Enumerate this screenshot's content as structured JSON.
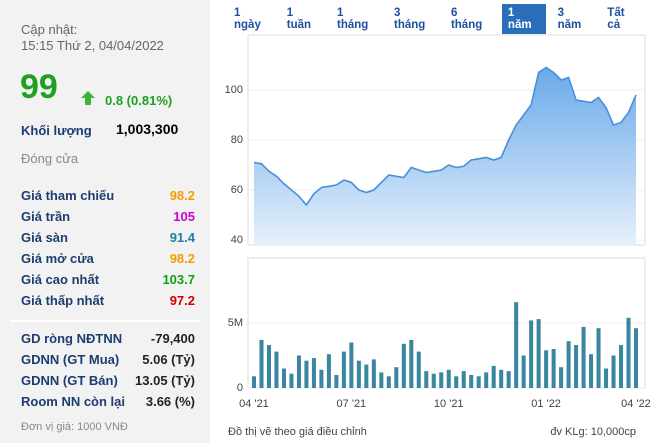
{
  "panel": {
    "updated_label": "Cập nhật:",
    "updated_time": "15:15 Thứ 2, 04/04/2022",
    "price": "99",
    "change": "0.8 (0.81%)",
    "volume_label": "Khối lượng",
    "volume": "1,003,300",
    "status": "Đóng cửa",
    "stats": [
      {
        "label": "Giá tham chiếu",
        "value": "98.2",
        "color": "#f0a000"
      },
      {
        "label": "Giá trần",
        "value": "105",
        "color": "#d000d0"
      },
      {
        "label": "Giá sàn",
        "value": "91.4",
        "color": "#1a7fa0"
      },
      {
        "label": "Giá mở cửa",
        "value": "98.2",
        "color": "#f0a000"
      },
      {
        "label": "Giá cao nhất",
        "value": "103.7",
        "color": "#10a010"
      },
      {
        "label": "Giá thấp nhất",
        "value": "97.2",
        "color": "#d00000"
      }
    ],
    "foreign": [
      {
        "label": "GD ròng NĐTNN",
        "value": "-79,400"
      },
      {
        "label": "GDNN (GT Mua)",
        "value": "5.06 (Tỷ)"
      },
      {
        "label": "GDNN (GT Bán)",
        "value": "13.05 (Tỷ)"
      },
      {
        "label": "Room NN còn lại",
        "value": "3.66 (%)"
      }
    ],
    "unit_note": "Đơn vị giá: 1000 VNĐ"
  },
  "tabs": [
    "1 ngày",
    "1 tuần",
    "1 tháng",
    "3 tháng",
    "6 tháng",
    "1 năm",
    "3 năm",
    "Tất cả"
  ],
  "footer": {
    "note": "Đồ thị vẽ theo giá điều chỉnh",
    "volume_unit": "đv KLg: 10,000cp"
  },
  "chart_data": [
    {
      "type": "area",
      "color": "#4a8fd8",
      "values": [
        71,
        70.5,
        67.5,
        65.5,
        62.5,
        60,
        57.5,
        54,
        58.5,
        61,
        61.5,
        62,
        64,
        63,
        60,
        59,
        60,
        63,
        66,
        65.5,
        65,
        69,
        68,
        67,
        67.5,
        68,
        70,
        69,
        69.5,
        72,
        72.5,
        73,
        72,
        73,
        80,
        86,
        90,
        94,
        107,
        109,
        107,
        104,
        105,
        96,
        95.5,
        95,
        97,
        93,
        86,
        87,
        91,
        98
      ],
      "ylim": [
        38,
        122
      ],
      "yticks": [
        40,
        60,
        80,
        100
      ],
      "grid": true
    },
    {
      "type": "bar",
      "color": "#3a86a0",
      "categories": [
        "04 '21",
        null,
        null,
        null,
        null,
        null,
        null,
        null,
        null,
        null,
        null,
        null,
        null,
        "07 '21",
        null,
        null,
        null,
        null,
        null,
        null,
        null,
        null,
        null,
        null,
        null,
        null,
        "10 '21",
        null,
        null,
        null,
        null,
        null,
        null,
        null,
        null,
        null,
        null,
        null,
        null,
        "01 '22",
        null,
        null,
        null,
        null,
        null,
        null,
        null,
        null,
        null,
        null,
        null,
        "04 '22"
      ],
      "values": [
        900000,
        3700000,
        3300000,
        2800000,
        1500000,
        1100000,
        2500000,
        2100000,
        2300000,
        1400000,
        2600000,
        1000000,
        2800000,
        3500000,
        2100000,
        1800000,
        2200000,
        1200000,
        900000,
        1600000,
        3400000,
        3700000,
        2800000,
        1300000,
        1100000,
        1200000,
        1400000,
        900000,
        1300000,
        1000000,
        900000,
        1200000,
        1700000,
        1400000,
        1300000,
        6600000,
        2500000,
        5200000,
        5300000,
        2900000,
        3000000,
        1600000,
        3600000,
        3300000,
        4700000,
        2600000,
        4600000,
        1500000,
        2500000,
        3300000,
        5400000,
        4600000
      ],
      "ylim": [
        0,
        10000000
      ],
      "yticks": [
        0,
        {
          "value": 5000000,
          "label": "5M"
        }
      ],
      "grid": true
    }
  ]
}
